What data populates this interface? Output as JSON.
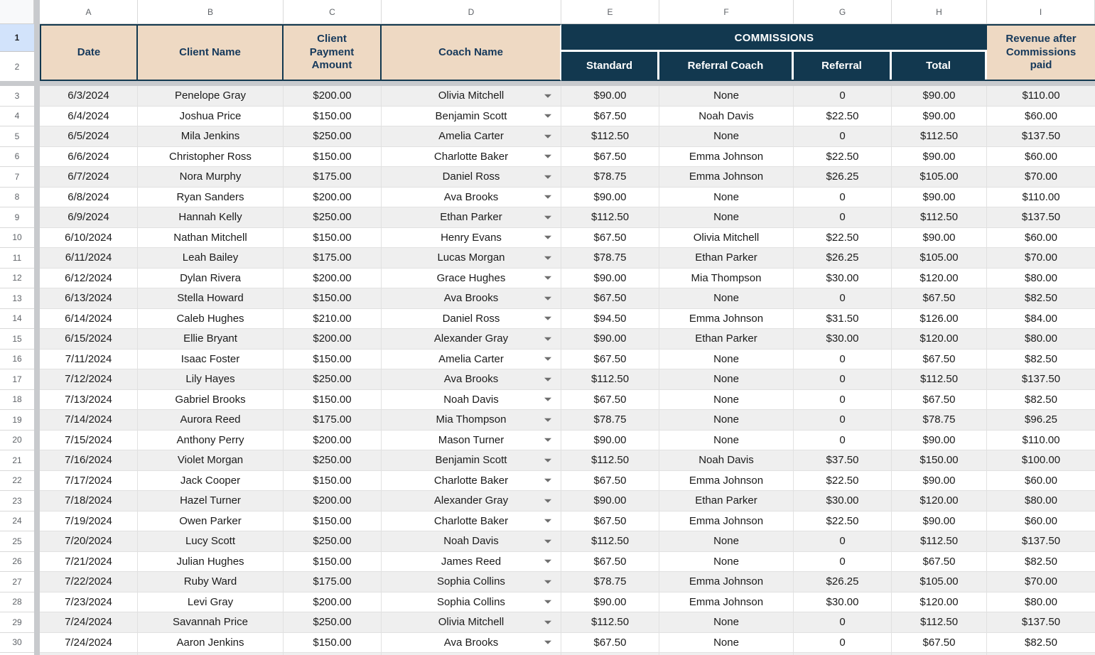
{
  "columns": {
    "letters": [
      "A",
      "B",
      "C",
      "D",
      "E",
      "F",
      "G",
      "H",
      "I"
    ]
  },
  "header": {
    "row1_label": "1",
    "row2_label": "2",
    "date": "Date",
    "client_name": "Client Name",
    "client_payment_amount": "Client Payment Amount",
    "coach_name": "Coach Name",
    "commissions": "COMMISSIONS",
    "standard": "Standard",
    "referral_coach": "Referral Coach",
    "referral": "Referral",
    "total": "Total",
    "revenue_after": "Revenue after Commissions paid"
  },
  "colors": {
    "header_tan": "#eed9c3",
    "header_navy": "#12384f",
    "header_text_navy": "#16395b",
    "alt_row_gray": "#efefef",
    "selected_row_number_blue": "#d2e3fb",
    "grid_line": "#e1e1e1",
    "frozen_divider_gray": "#c8cacd"
  },
  "icons": {
    "coach_dropdown": "chevron-down-triangle"
  },
  "rows": [
    {
      "n": "3",
      "date": "6/3/2024",
      "client": "Penelope Gray",
      "payment": "$200.00",
      "coach": "Olivia Mitchell",
      "standard": "$90.00",
      "ref_coach": "None",
      "referral": "0",
      "total": "$90.00",
      "revenue": "$110.00"
    },
    {
      "n": "4",
      "date": "6/4/2024",
      "client": "Joshua Price",
      "payment": "$150.00",
      "coach": "Benjamin Scott",
      "standard": "$67.50",
      "ref_coach": "Noah Davis",
      "referral": "$22.50",
      "total": "$90.00",
      "revenue": "$60.00"
    },
    {
      "n": "5",
      "date": "6/5/2024",
      "client": "Mila Jenkins",
      "payment": "$250.00",
      "coach": "Amelia Carter",
      "standard": "$112.50",
      "ref_coach": "None",
      "referral": "0",
      "total": "$112.50",
      "revenue": "$137.50"
    },
    {
      "n": "6",
      "date": "6/6/2024",
      "client": "Christopher Ross",
      "payment": "$150.00",
      "coach": "Charlotte Baker",
      "standard": "$67.50",
      "ref_coach": "Emma Johnson",
      "referral": "$22.50",
      "total": "$90.00",
      "revenue": "$60.00"
    },
    {
      "n": "7",
      "date": "6/7/2024",
      "client": "Nora Murphy",
      "payment": "$175.00",
      "coach": "Daniel Ross",
      "standard": "$78.75",
      "ref_coach": "Emma Johnson",
      "referral": "$26.25",
      "total": "$105.00",
      "revenue": "$70.00"
    },
    {
      "n": "8",
      "date": "6/8/2024",
      "client": "Ryan Sanders",
      "payment": "$200.00",
      "coach": "Ava Brooks",
      "standard": "$90.00",
      "ref_coach": "None",
      "referral": "0",
      "total": "$90.00",
      "revenue": "$110.00"
    },
    {
      "n": "9",
      "date": "6/9/2024",
      "client": "Hannah Kelly",
      "payment": "$250.00",
      "coach": "Ethan Parker",
      "standard": "$112.50",
      "ref_coach": "None",
      "referral": "0",
      "total": "$112.50",
      "revenue": "$137.50"
    },
    {
      "n": "10",
      "date": "6/10/2024",
      "client": "Nathan Mitchell",
      "payment": "$150.00",
      "coach": "Henry Evans",
      "standard": "$67.50",
      "ref_coach": "Olivia Mitchell",
      "referral": "$22.50",
      "total": "$90.00",
      "revenue": "$60.00"
    },
    {
      "n": "11",
      "date": "6/11/2024",
      "client": "Leah Bailey",
      "payment": "$175.00",
      "coach": "Lucas Morgan",
      "standard": "$78.75",
      "ref_coach": "Ethan Parker",
      "referral": "$26.25",
      "total": "$105.00",
      "revenue": "$70.00"
    },
    {
      "n": "12",
      "date": "6/12/2024",
      "client": "Dylan Rivera",
      "payment": "$200.00",
      "coach": "Grace Hughes",
      "standard": "$90.00",
      "ref_coach": "Mia Thompson",
      "referral": "$30.00",
      "total": "$120.00",
      "revenue": "$80.00"
    },
    {
      "n": "13",
      "date": "6/13/2024",
      "client": "Stella Howard",
      "payment": "$150.00",
      "coach": "Ava Brooks",
      "standard": "$67.50",
      "ref_coach": "None",
      "referral": "0",
      "total": "$67.50",
      "revenue": "$82.50"
    },
    {
      "n": "14",
      "date": "6/14/2024",
      "client": "Caleb Hughes",
      "payment": "$210.00",
      "coach": "Daniel Ross",
      "standard": "$94.50",
      "ref_coach": "Emma Johnson",
      "referral": "$31.50",
      "total": "$126.00",
      "revenue": "$84.00"
    },
    {
      "n": "15",
      "date": "6/15/2024",
      "client": "Ellie Bryant",
      "payment": "$200.00",
      "coach": "Alexander Gray",
      "standard": "$90.00",
      "ref_coach": "Ethan Parker",
      "referral": "$30.00",
      "total": "$120.00",
      "revenue": "$80.00"
    },
    {
      "n": "16",
      "date": "7/11/2024",
      "client": "Isaac Foster",
      "payment": "$150.00",
      "coach": "Amelia Carter",
      "standard": "$67.50",
      "ref_coach": "None",
      "referral": "0",
      "total": "$67.50",
      "revenue": "$82.50"
    },
    {
      "n": "17",
      "date": "7/12/2024",
      "client": "Lily Hayes",
      "payment": "$250.00",
      "coach": "Ava Brooks",
      "standard": "$112.50",
      "ref_coach": "None",
      "referral": "0",
      "total": "$112.50",
      "revenue": "$137.50"
    },
    {
      "n": "18",
      "date": "7/13/2024",
      "client": "Gabriel Brooks",
      "payment": "$150.00",
      "coach": "Noah Davis",
      "standard": "$67.50",
      "ref_coach": "None",
      "referral": "0",
      "total": "$67.50",
      "revenue": "$82.50"
    },
    {
      "n": "19",
      "date": "7/14/2024",
      "client": "Aurora Reed",
      "payment": "$175.00",
      "coach": "Mia Thompson",
      "standard": "$78.75",
      "ref_coach": "None",
      "referral": "0",
      "total": "$78.75",
      "revenue": "$96.25"
    },
    {
      "n": "20",
      "date": "7/15/2024",
      "client": "Anthony Perry",
      "payment": "$200.00",
      "coach": "Mason Turner",
      "standard": "$90.00",
      "ref_coach": "None",
      "referral": "0",
      "total": "$90.00",
      "revenue": "$110.00"
    },
    {
      "n": "21",
      "date": "7/16/2024",
      "client": "Violet Morgan",
      "payment": "$250.00",
      "coach": "Benjamin Scott",
      "standard": "$112.50",
      "ref_coach": "Noah Davis",
      "referral": "$37.50",
      "total": "$150.00",
      "revenue": "$100.00"
    },
    {
      "n": "22",
      "date": "7/17/2024",
      "client": "Jack Cooper",
      "payment": "$150.00",
      "coach": "Charlotte Baker",
      "standard": "$67.50",
      "ref_coach": "Emma Johnson",
      "referral": "$22.50",
      "total": "$90.00",
      "revenue": "$60.00"
    },
    {
      "n": "23",
      "date": "7/18/2024",
      "client": "Hazel Turner",
      "payment": "$200.00",
      "coach": "Alexander Gray",
      "standard": "$90.00",
      "ref_coach": "Ethan Parker",
      "referral": "$30.00",
      "total": "$120.00",
      "revenue": "$80.00"
    },
    {
      "n": "24",
      "date": "7/19/2024",
      "client": "Owen Parker",
      "payment": "$150.00",
      "coach": "Charlotte Baker",
      "standard": "$67.50",
      "ref_coach": "Emma Johnson",
      "referral": "$22.50",
      "total": "$90.00",
      "revenue": "$60.00"
    },
    {
      "n": "25",
      "date": "7/20/2024",
      "client": "Lucy Scott",
      "payment": "$250.00",
      "coach": "Noah Davis",
      "standard": "$112.50",
      "ref_coach": "None",
      "referral": "0",
      "total": "$112.50",
      "revenue": "$137.50"
    },
    {
      "n": "26",
      "date": "7/21/2024",
      "client": "Julian Hughes",
      "payment": "$150.00",
      "coach": "James Reed",
      "standard": "$67.50",
      "ref_coach": "None",
      "referral": "0",
      "total": "$67.50",
      "revenue": "$82.50"
    },
    {
      "n": "27",
      "date": "7/22/2024",
      "client": "Ruby Ward",
      "payment": "$175.00",
      "coach": "Sophia Collins",
      "standard": "$78.75",
      "ref_coach": "Emma Johnson",
      "referral": "$26.25",
      "total": "$105.00",
      "revenue": "$70.00"
    },
    {
      "n": "28",
      "date": "7/23/2024",
      "client": "Levi Gray",
      "payment": "$200.00",
      "coach": "Sophia Collins",
      "standard": "$90.00",
      "ref_coach": "Emma Johnson",
      "referral": "$30.00",
      "total": "$120.00",
      "revenue": "$80.00"
    },
    {
      "n": "29",
      "date": "7/24/2024",
      "client": "Savannah Price",
      "payment": "$250.00",
      "coach": "Olivia Mitchell",
      "standard": "$112.50",
      "ref_coach": "None",
      "referral": "0",
      "total": "$112.50",
      "revenue": "$137.50"
    },
    {
      "n": "30",
      "date": "7/24/2024",
      "client": "Aaron Jenkins",
      "payment": "$150.00",
      "coach": "Ava Brooks",
      "standard": "$67.50",
      "ref_coach": "None",
      "referral": "0",
      "total": "$67.50",
      "revenue": "$82.50"
    }
  ]
}
